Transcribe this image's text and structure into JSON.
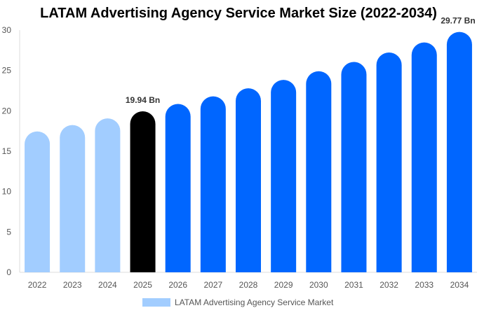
{
  "chart_data": {
    "type": "bar",
    "title": "LATAM Advertising Agency Service Market Size (2022-2034)",
    "categories": [
      "2022",
      "2023",
      "2024",
      "2025",
      "2026",
      "2027",
      "2028",
      "2029",
      "2030",
      "2031",
      "2032",
      "2033",
      "2034"
    ],
    "series": [
      {
        "name": "LATAM Advertising Agency Service Market",
        "values": [
          17.45,
          18.24,
          19.07,
          19.94,
          20.85,
          21.8,
          22.79,
          23.83,
          24.91,
          26.05,
          27.23,
          28.47,
          29.77
        ]
      }
    ],
    "data_labels": {
      "2025": "19.94 Bn",
      "2034": "29.77 Bn"
    },
    "bar_colors": {
      "historical": "#a2cdff",
      "current": "#000000",
      "forecast": "#0066ff"
    },
    "ylim": [
      0,
      30
    ],
    "yticks": [
      0,
      5,
      10,
      15,
      20,
      25,
      30
    ],
    "xlabel": "",
    "ylabel": "",
    "grid": false,
    "legend": "bottom"
  }
}
